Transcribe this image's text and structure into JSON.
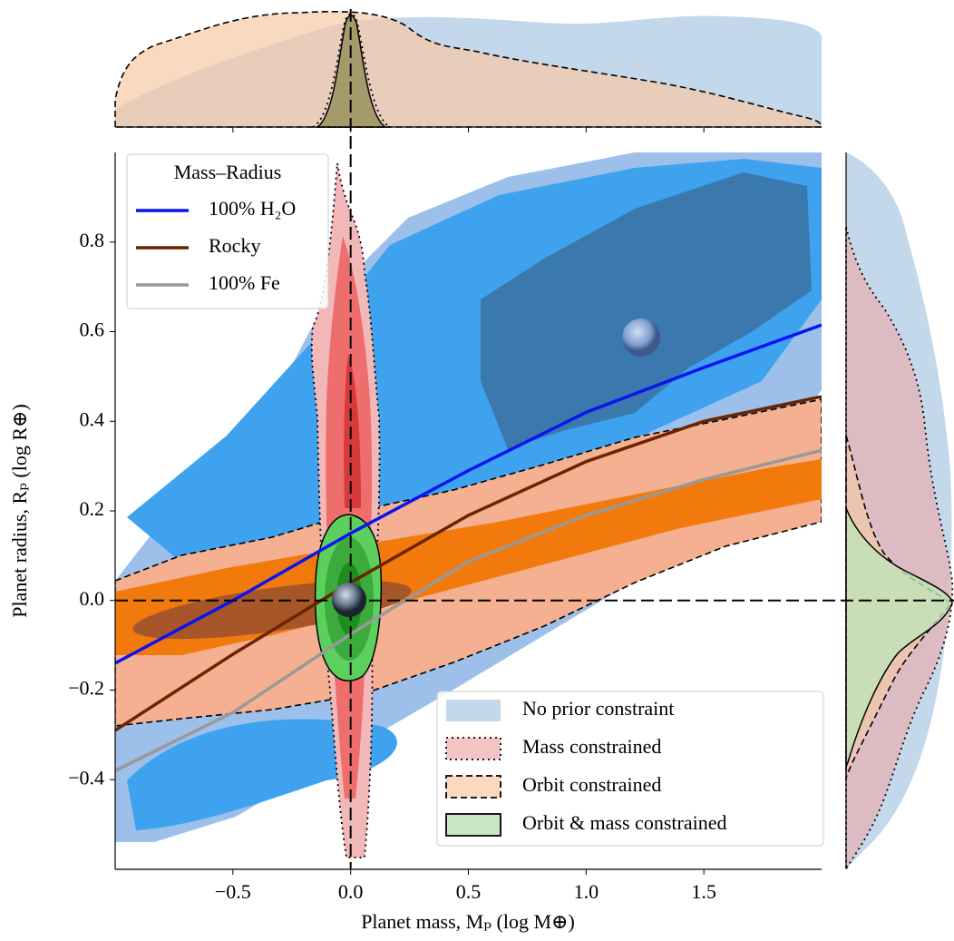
{
  "chart_data": {
    "type": "line",
    "x_label": "Planet mass, Mₚ (log M⊕)",
    "y_label": "Planet radius, Rₚ (log R⊕)",
    "xlim": [
      -1.0,
      2.0
    ],
    "ylim": [
      -0.6,
      1.0
    ],
    "xticks": [
      {
        "value": -0.5,
        "label": "−0.5"
      },
      {
        "value": 0.0,
        "label": "0.0"
      },
      {
        "value": 0.5,
        "label": "0.5"
      },
      {
        "value": 1.0,
        "label": "1.0"
      },
      {
        "value": 1.5,
        "label": "1.5"
      }
    ],
    "yticks": [
      {
        "value": -0.4,
        "label": "−0.4"
      },
      {
        "value": -0.2,
        "label": "−0.2"
      },
      {
        "value": 0.0,
        "label": "0.0"
      },
      {
        "value": 0.2,
        "label": "0.2"
      },
      {
        "value": 0.4,
        "label": "0.4"
      },
      {
        "value": 0.6,
        "label": "0.6"
      },
      {
        "value": 0.8,
        "label": "0.8"
      }
    ],
    "reference_x": 0.0,
    "reference_y": 0.0,
    "legend_title": "Mass–Radius",
    "x": [
      -1.0,
      -0.5,
      0.0,
      0.5,
      1.0,
      1.5,
      2.0
    ],
    "series": [
      {
        "name": "100% H₂O",
        "color": "#0a14f0",
        "values": [
          -0.14,
          0.0,
          0.15,
          0.29,
          0.42,
          0.52,
          0.615
        ]
      },
      {
        "name": "Rocky",
        "color": "#6b2300",
        "values": [
          -0.29,
          -0.12,
          0.04,
          0.19,
          0.31,
          0.4,
          0.455
        ]
      },
      {
        "name": "100% Fe",
        "color": "#999999",
        "values": [
          -0.38,
          -0.25,
          -0.075,
          0.087,
          0.19,
          0.27,
          0.335
        ]
      }
    ],
    "contour_legend": [
      {
        "name": "No prior constraint",
        "color": "#c3d8ea",
        "outline": "none"
      },
      {
        "name": "Mass constrained",
        "color": "#f2c4c4",
        "outline": "dotted"
      },
      {
        "name": "Orbit constrained",
        "color": "#fcd9be",
        "outline": "dashed"
      },
      {
        "name": "Orbit & mass constrained",
        "color": "#c9e6c4",
        "outline": "solid"
      }
    ]
  }
}
